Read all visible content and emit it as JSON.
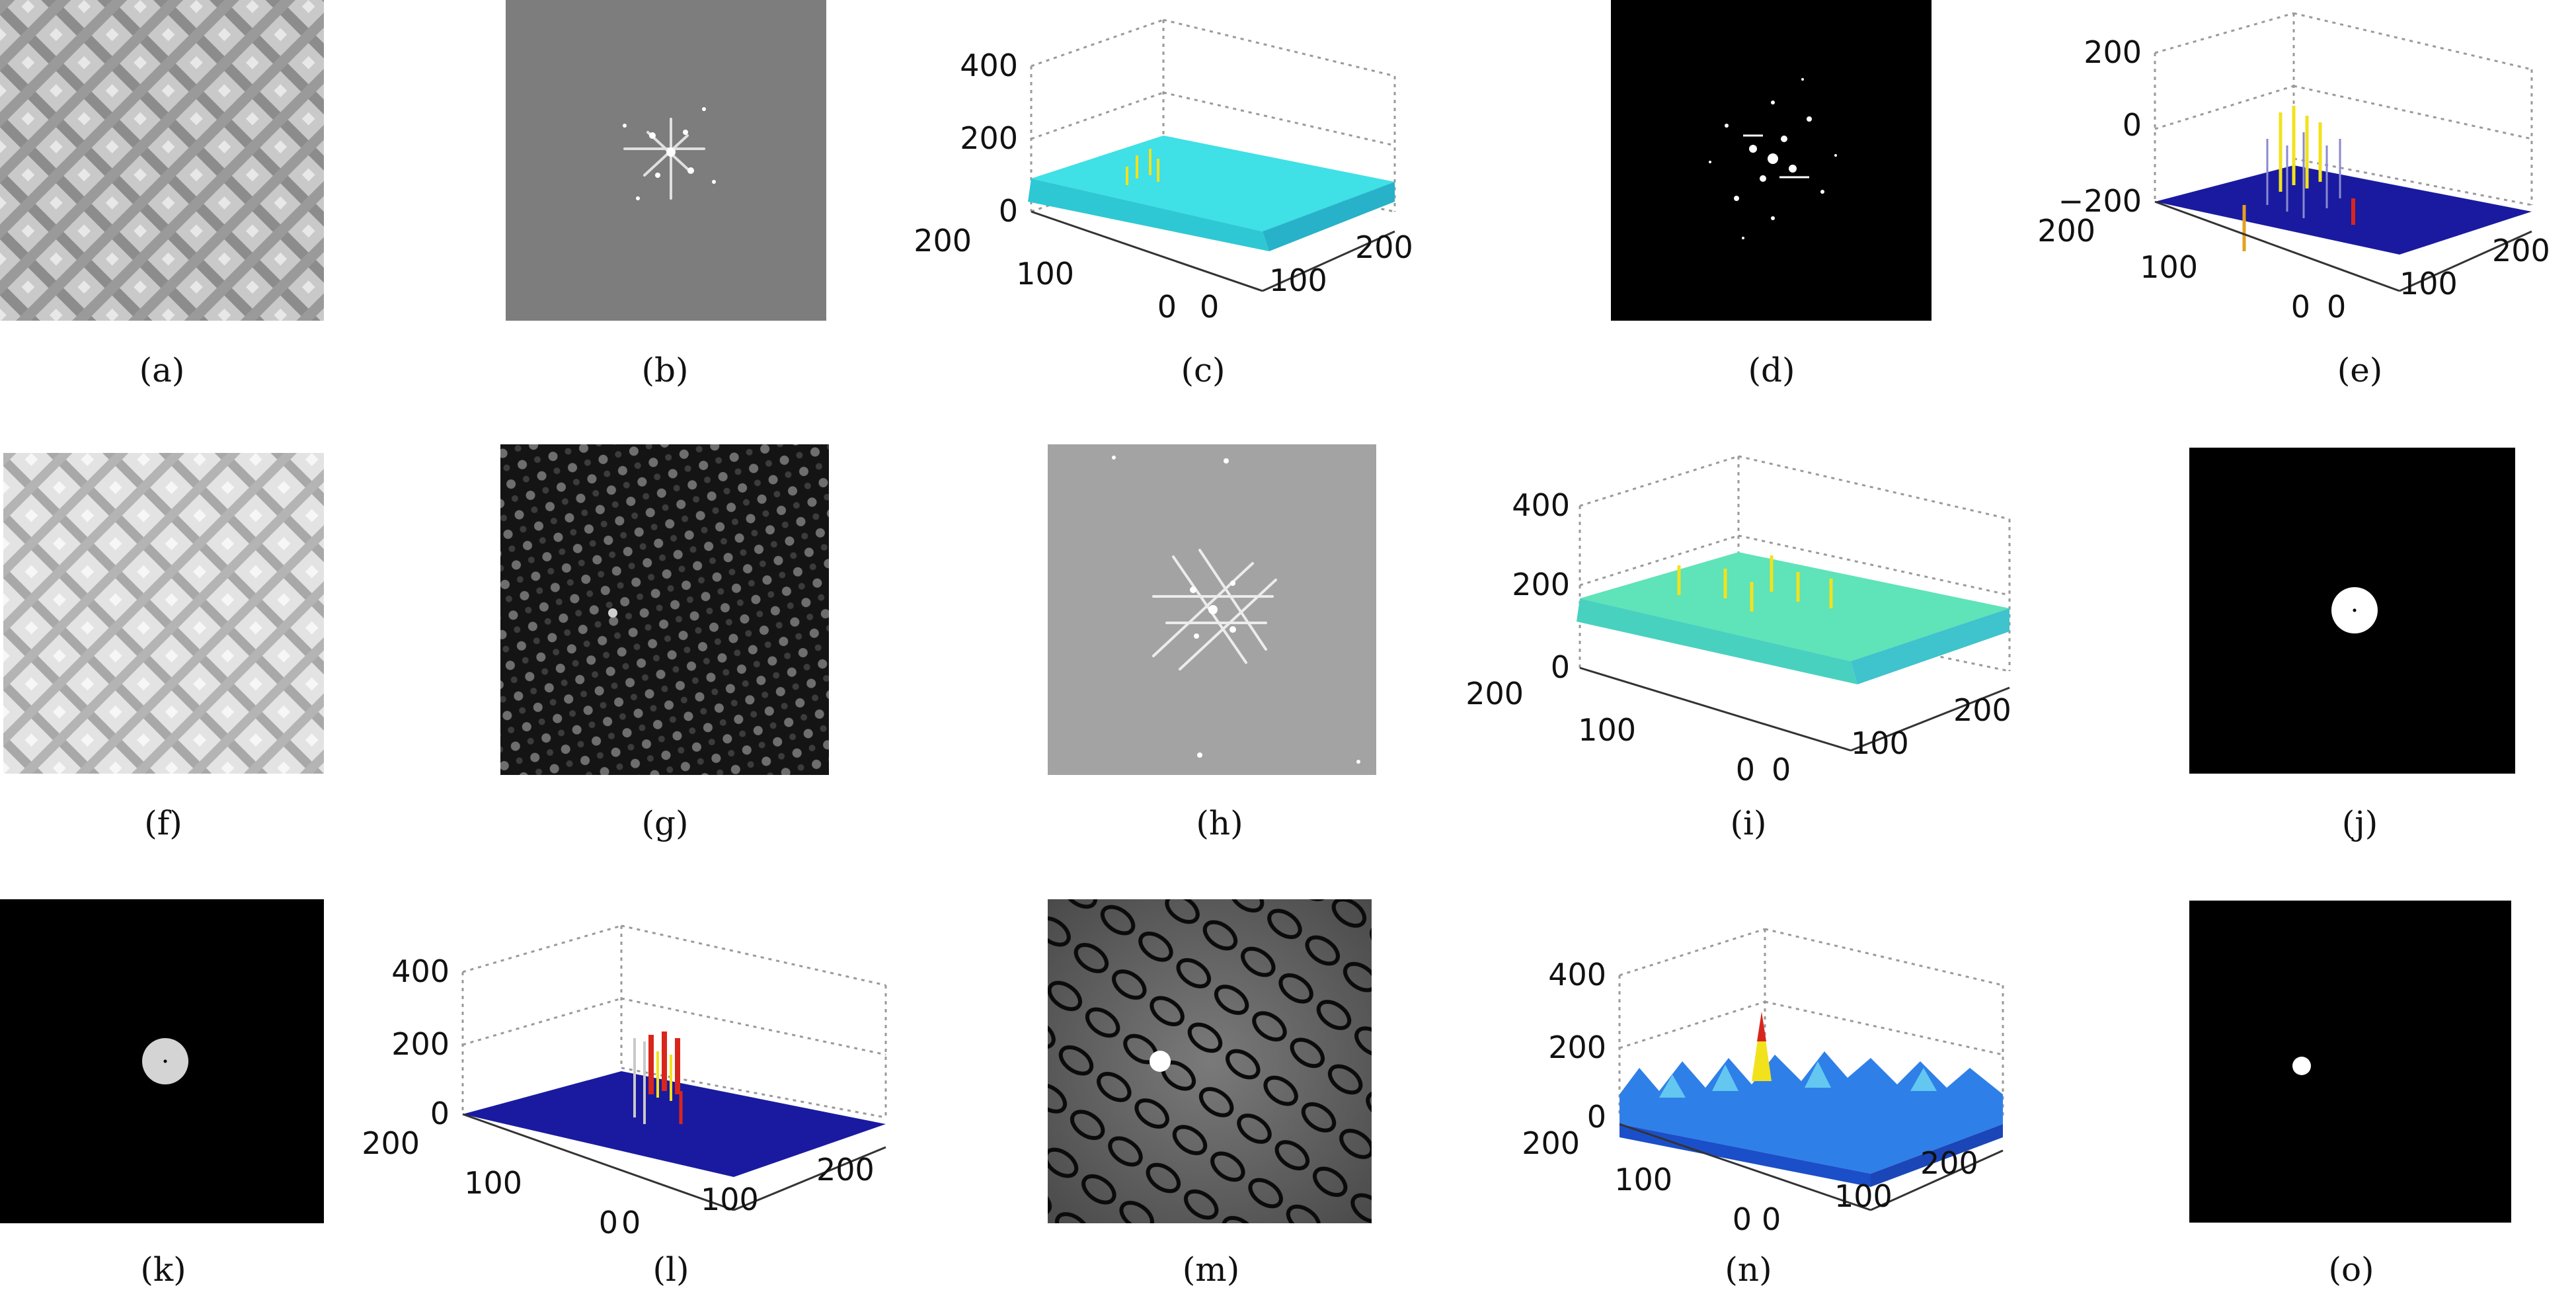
{
  "figure": {
    "panels": [
      {
        "label": "(a)",
        "kind": "image",
        "image": "lattice-micrograph"
      },
      {
        "label": "(b)",
        "kind": "image",
        "image": "fft-spectrum-gray"
      },
      {
        "label": "(c)",
        "kind": "surface",
        "z_ticks": [
          "400",
          "200",
          "0"
        ],
        "left_ticks": [
          "200",
          "100",
          "0"
        ],
        "right_ticks": [
          "0",
          "100",
          "200"
        ],
        "palette": "cyan"
      },
      {
        "label": "(d)",
        "kind": "image",
        "image": "spectrum-peaks-black"
      },
      {
        "label": "(e)",
        "kind": "surface",
        "z_ticks": [
          "200",
          "0",
          "−200"
        ],
        "left_ticks": [
          "200",
          "100",
          "0"
        ],
        "right_ticks": [
          "0",
          "100",
          "200"
        ],
        "palette": "dark-blue-spikes"
      },
      {
        "label": "(f)",
        "kind": "image",
        "image": "lattice-micrograph-light"
      },
      {
        "label": "(g)",
        "kind": "image",
        "image": "lattice-dark"
      },
      {
        "label": "(h)",
        "kind": "image",
        "image": "fft-spectrum-light"
      },
      {
        "label": "(i)",
        "kind": "surface",
        "z_ticks": [
          "400",
          "200",
          "0"
        ],
        "left_ticks": [
          "200",
          "100",
          "0"
        ],
        "right_ticks": [
          "0",
          "100",
          "200"
        ],
        "palette": "cyan-yellow"
      },
      {
        "label": "(j)",
        "kind": "image",
        "image": "white-disk-mask"
      },
      {
        "label": "(k)",
        "kind": "image",
        "image": "gray-disk-mask"
      },
      {
        "label": "(l)",
        "kind": "surface",
        "z_ticks": [
          "400",
          "200",
          "0"
        ],
        "left_ticks": [
          "200",
          "100",
          "0"
        ],
        "right_ticks": [
          "0",
          "100",
          "200"
        ],
        "palette": "dark-blue-central-peak"
      },
      {
        "label": "(m)",
        "kind": "image",
        "image": "contour-pattern"
      },
      {
        "label": "(n)",
        "kind": "surface",
        "z_ticks": [
          "400",
          "200",
          "0"
        ],
        "left_ticks": [
          "200",
          "100",
          "0"
        ],
        "right_ticks": [
          "0",
          "100",
          "200"
        ],
        "palette": "blue-hills"
      },
      {
        "label": "(o)",
        "kind": "image",
        "image": "small-dot-mask"
      }
    ],
    "colors": {
      "surface_cyan": "#3fe0e6",
      "surface_dark_blue": "#1a1aa0",
      "peak_yellow": "#f2e21c",
      "peak_red": "#d9261c",
      "hill_blue": "#2f7fe8"
    }
  }
}
